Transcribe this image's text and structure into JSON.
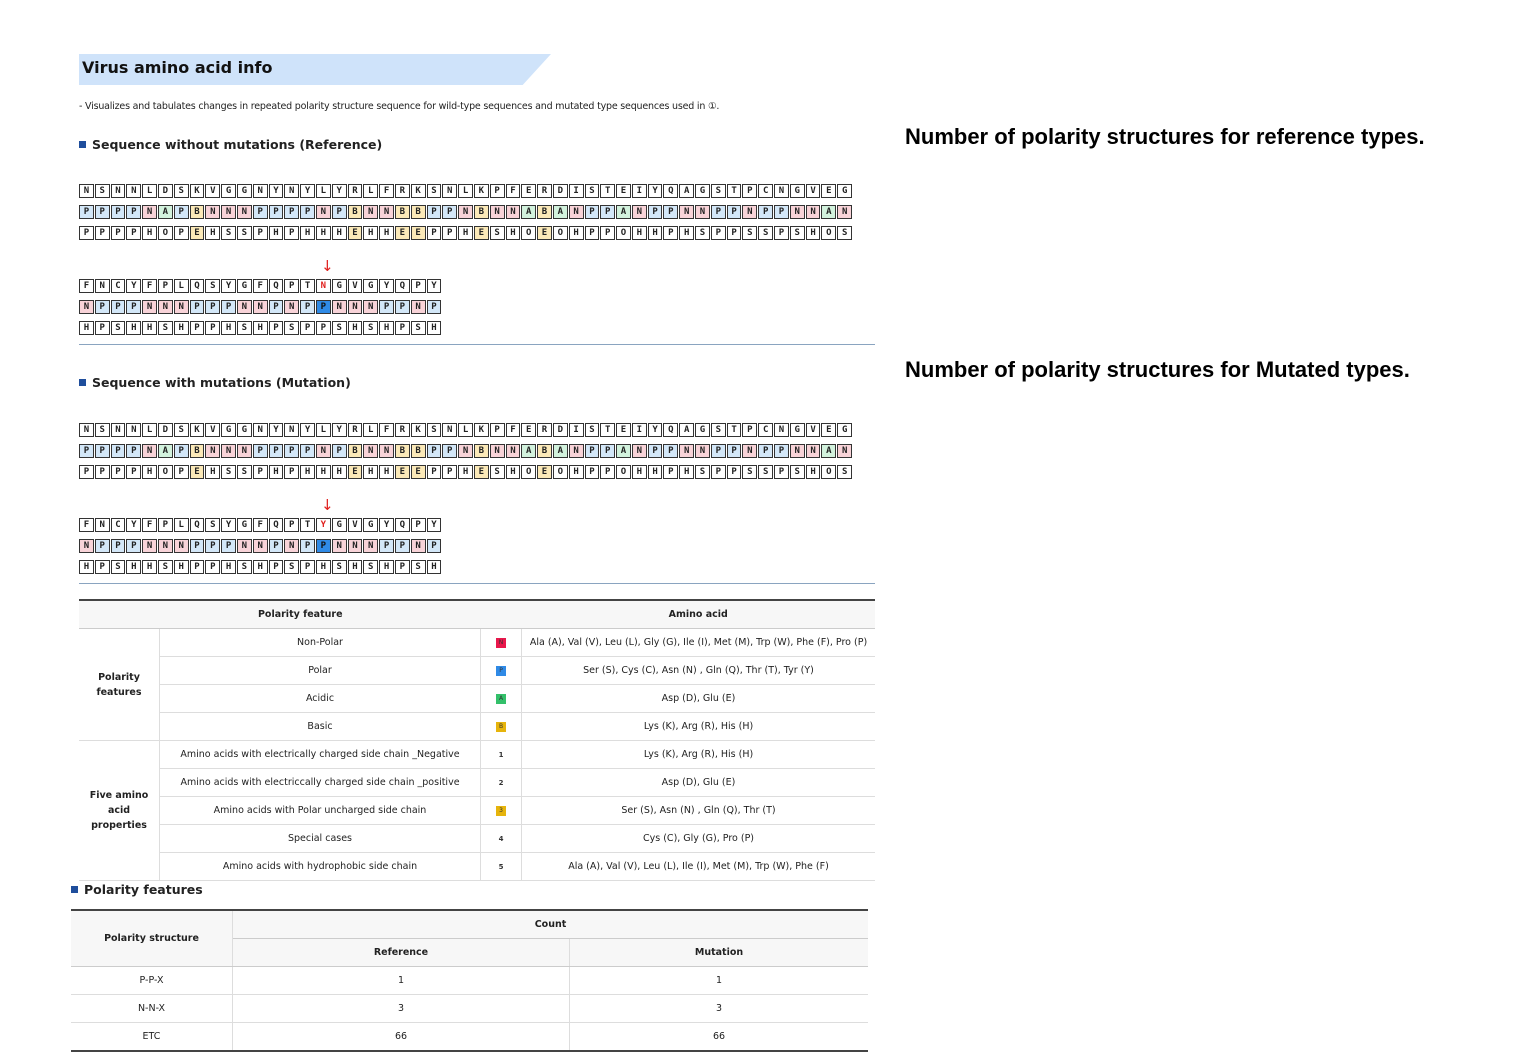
{
  "header": {
    "title": "Virus amino acid info",
    "description": "- Visualizes and tabulates changes in repeated polarity structure sequence for wild-type sequences and mutated type sequences used in ①."
  },
  "reference_section": {
    "heading": "Sequence without mutations (Reference)",
    "side_note": "Number of polarity structures for reference types.",
    "row1": {
      "residues": "NSNNLDSKVGGNYNYLYRLFRKSNLKPFERDISTEIYQAGSTPCNGVEG",
      "polarity": "PPPPNAPBNNNPPPPNPBNNBBPPNBNNABANPPANPPNNPPNPPNNAN",
      "properties": "PPPPHOPEHSSPHPHHHEHHEEPPHESHOEOHPPOHHPHSPPSSPSHOS"
    },
    "row2": {
      "residues": "FNCYFPLQSYGFQPTNGVGYQPY",
      "polarity": "NPPPNNNPPPNNPNPPNNNPPNP",
      "properties": "HPSHHSHPPHSHPSPPSHSHPSH",
      "mutation_index": 15
    }
  },
  "mutation_section": {
    "heading": "Sequence with mutations (Mutation)",
    "side_note": "Number of polarity structures for Mutated types.",
    "row1": {
      "residues": "NSNNLDSKVGGNYNYLYRLFRKSNLKPFERDISTEIYQAGSTPCNGVEG",
      "polarity": "PPPPNAPBNNNPPPPNPBNNBBPPNBNNABANPPANPPNNPPNPPNNAN",
      "properties": "PPPPHOPEHSSPHPHHHEHHEEPPHESHOEOHPPOHHPHSPPSSPSHOS"
    },
    "row2": {
      "residues": "FNCYFPLQSYGFQPTYGVGYQPY",
      "polarity": "NPPPNNNPPPNNPNPPNNNPPNP",
      "properties": "HPSHHSHPPHSHPSPHSHSHPSH",
      "mutation_index": 15
    }
  },
  "legend_table": {
    "header_feature": "Polarity feature",
    "header_amino": "Amino acid",
    "group1_label": "Polarity features",
    "group2_label": "Five amino acid properties",
    "rows": [
      {
        "feature": "Non-Polar",
        "symbol": "N",
        "color": "#e8174b",
        "amino": "Ala (A), Val (V), Leu (L), Gly (G), Ile (I), Met (M), Trp (W), Phe (F), Pro (P)"
      },
      {
        "feature": "Polar",
        "symbol": "P",
        "color": "#2f8ae6",
        "amino": "Ser (S), Cys (C), Asn (N) , Gln (Q), Thr (T), Tyr (Y)"
      },
      {
        "feature": "Acidic",
        "symbol": "A",
        "color": "#33c06a",
        "amino": "Asp (D), Glu (E)"
      },
      {
        "feature": "Basic",
        "symbol": "B",
        "color": "#e6b40c",
        "amino": "Lys (K), Arg (R), His (H)"
      },
      {
        "feature": "Amino acids with electrically charged side chain _Negative",
        "symbol": "1",
        "color": "",
        "amino": "Lys (K), Arg (R), His (H)"
      },
      {
        "feature": "Amino acids with electriccally charged side chain _positive",
        "symbol": "2",
        "color": "",
        "amino": "Asp (D), Glu (E)"
      },
      {
        "feature": "Amino acids with Polar uncharged side chain",
        "symbol": "3",
        "color": "#e6b40c",
        "amino": "Ser (S), Asn (N) , Gln (Q), Thr (T)"
      },
      {
        "feature": "Special cases",
        "symbol": "4",
        "color": "",
        "amino": "Cys (C), Gly (G), Pro (P)"
      },
      {
        "feature": "Amino acids with hydrophobic side chain",
        "symbol": "5",
        "color": "",
        "amino": "Ala (A), Val (V), Leu (L), Ile (I), Met (M), Trp (W), Phe (F)"
      }
    ]
  },
  "polarity_section": {
    "heading": "Polarity features",
    "header_structure": "Polarity structure",
    "header_count": "Count",
    "header_reference": "Reference",
    "header_mutation": "Mutation",
    "rows": [
      {
        "structure": "P-P-X",
        "reference": "1",
        "mutation": "1"
      },
      {
        "structure": "N-N-X",
        "reference": "3",
        "mutation": "3"
      },
      {
        "structure": "ETC",
        "reference": "66",
        "mutation": "66"
      }
    ]
  }
}
